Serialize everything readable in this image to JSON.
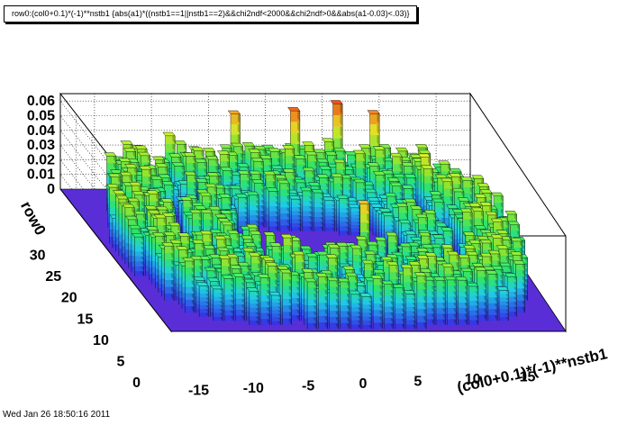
{
  "header": {
    "title": "row0:(col0+0.1)*(-1)**nstb1 {abs(a1)*((nstb1==1||nstb1==2)&&chi2ndf<2000&&chi2ndf>0&&abs(a1-0.03)<.03)}"
  },
  "footer": {
    "timestamp": "Wed Jan 26 18:50:16 2011"
  },
  "chart_data": {
    "type": "heatmap",
    "style": "3D lego histogram",
    "title": "row0:(col0+0.1)*(-1)**nstb1 {abs(a1)*((nstb1==1||nstb1==2)&&chi2ndf<2000&&chi2ndf>0&&abs(a1-0.03)<.03)}",
    "xlabel": "(col0+0.1)*(-1)**nstb1",
    "ylabel": "row0",
    "zlabel": "",
    "xlim": [
      -18,
      18
    ],
    "ylim": [
      0,
      35
    ],
    "zlim": [
      0,
      0.065
    ],
    "x_ticks": [
      "-15",
      "-10",
      "-5",
      "0",
      "5",
      "10",
      "15"
    ],
    "y_ticks": [
      "0",
      "5",
      "10",
      "15",
      "20",
      "25",
      "30"
    ],
    "z_ticks": [
      "0",
      "0.01",
      "0.02",
      "0.03",
      "0.04",
      "0.05",
      "0.06"
    ],
    "grid": true,
    "colors": {
      "floor": "#5a2ed6",
      "palette": [
        "#3c2cf0",
        "#2a7ff5",
        "#22d8f0",
        "#30f070",
        "#9cf030",
        "#f0f028",
        "#f8a020",
        "#f02818"
      ]
    },
    "description_of_shape": "Two annular rings of towers (outer ring and inner ring around an empty center); heights mostly 0.02-0.045, some up to ~0.062",
    "rings": [
      {
        "name": "outer",
        "x_half_width": 17,
        "y_half_height": 16,
        "y_center": 17.5,
        "thickness": 5,
        "mean_height": 0.03
      },
      {
        "name": "inner",
        "x_half_width": 11,
        "y_half_height": 10,
        "y_center": 17.5,
        "thickness": 4,
        "mean_height": 0.028
      }
    ],
    "peak_bins": [
      {
        "x": -13,
        "y": 32,
        "z": 0.04
      },
      {
        "x": -9,
        "y": 33,
        "z": 0.043
      },
      {
        "x": -3,
        "y": 34,
        "z": 0.055
      },
      {
        "x": 2,
        "y": 33,
        "z": 0.06
      },
      {
        "x": 6,
        "y": 34,
        "z": 0.062
      },
      {
        "x": 9,
        "y": 33,
        "z": 0.058
      },
      {
        "x": -11,
        "y": 20,
        "z": 0.035
      },
      {
        "x": -5,
        "y": 9,
        "z": 0.04
      },
      {
        "x": 3,
        "y": 13,
        "z": 0.052
      },
      {
        "x": 12,
        "y": 27,
        "z": 0.045
      },
      {
        "x": 14,
        "y": 24,
        "z": 0.04
      }
    ]
  }
}
